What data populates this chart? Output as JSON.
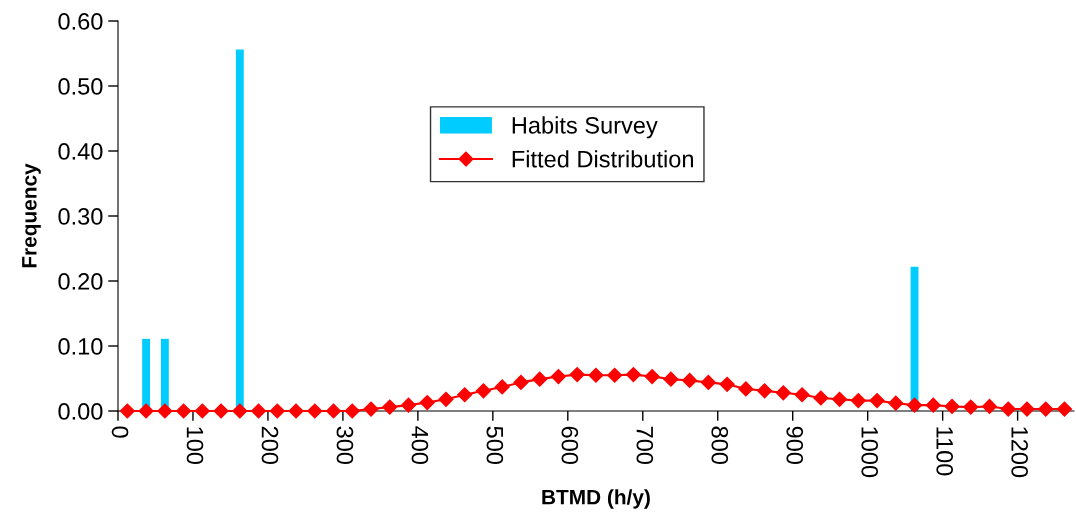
{
  "chart_data": {
    "type": "bar",
    "xlabel": "BTMD (h/y)",
    "ylabel": "Frequency",
    "xlim": [
      0,
      1275
    ],
    "xticks": [
      0,
      100,
      200,
      300,
      400,
      500,
      600,
      700,
      800,
      900,
      1000,
      1100,
      1200
    ],
    "ylim": [
      0,
      0.6
    ],
    "yticks": [
      {
        "value": 0,
        "label": "0.00"
      },
      {
        "value": 0.1,
        "label": "0.10"
      },
      {
        "value": 0.2,
        "label": "0.20"
      },
      {
        "value": 0.3,
        "label": "0.30"
      },
      {
        "value": 0.4,
        "label": "0.40"
      },
      {
        "value": 0.5,
        "label": "0.50"
      },
      {
        "value": 0.6,
        "label": "0.60"
      }
    ],
    "grid": false,
    "legend": "top",
    "series": [
      {
        "name": "Habits Survey",
        "color": "#00ccff",
        "x": [
          37.5,
          62.5,
          162.5,
          1062.5
        ],
        "values": [
          0.111,
          0.111,
          0.556,
          0.222
        ]
      },
      {
        "name": "Fitted Distribution",
        "type": "line",
        "color": "#ff0000",
        "marker": "diamond",
        "line_style": "solid",
        "x": [
          12.5,
          37.5,
          62.5,
          87.5,
          112.5,
          137.5,
          162.5,
          187.5,
          212.5,
          237.5,
          262.5,
          287.5,
          312.5,
          337.5,
          362.5,
          387.5,
          412.5,
          437.5,
          462.5,
          487.5,
          512.5,
          537.5,
          562.5,
          587.5,
          612.5,
          637.5,
          662.5,
          687.5,
          712.5,
          737.5,
          762.5,
          787.5,
          812.5,
          837.5,
          862.5,
          887.5,
          912.5,
          937.5,
          962.5,
          987.5,
          1012.5,
          1037.5,
          1062.5,
          1087.5,
          1112.5,
          1137.5,
          1162.5,
          1187.5,
          1212.5,
          1237.5,
          1262.5
        ],
        "values": [
          0,
          0,
          0,
          0,
          0,
          0,
          0,
          0,
          0,
          0,
          0,
          0,
          0,
          0.003,
          0.006,
          0.009,
          0.013,
          0.018,
          0.025,
          0.031,
          0.037,
          0.044,
          0.049,
          0.053,
          0.056,
          0.055,
          0.055,
          0.056,
          0.053,
          0.049,
          0.047,
          0.044,
          0.041,
          0.034,
          0.031,
          0.028,
          0.025,
          0.02,
          0.018,
          0.016,
          0.016,
          0.012,
          0.009,
          0.009,
          0.007,
          0.006,
          0.007,
          0.003,
          0.003,
          0.003,
          0.003
        ]
      }
    ]
  }
}
